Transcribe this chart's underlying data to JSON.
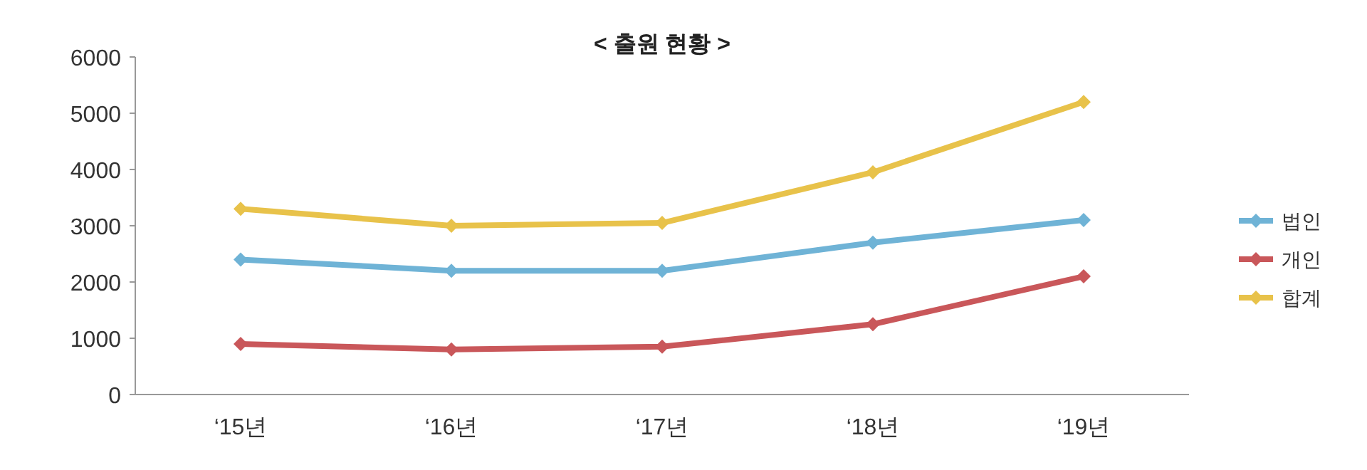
{
  "chart_data": {
    "type": "line",
    "title": "< 출원 현황 >",
    "categories": [
      "‘15년",
      "‘16년",
      "‘17년",
      "‘18년",
      "‘19년"
    ],
    "series": [
      {
        "name": "법인",
        "color": "#6fb3d6",
        "values": [
          2400,
          2200,
          2200,
          2700,
          3100
        ]
      },
      {
        "name": "개인",
        "color": "#c9575a",
        "values": [
          900,
          800,
          850,
          1250,
          2100
        ]
      },
      {
        "name": "합계",
        "color": "#e8c24a",
        "values": [
          3300,
          3000,
          3050,
          3950,
          5200
        ]
      }
    ],
    "ylim": [
      0,
      6000
    ],
    "yticks": [
      0,
      1000,
      2000,
      3000,
      4000,
      5000,
      6000
    ],
    "grid": false,
    "legend": "right",
    "marker": "diamond",
    "line_style": "solid"
  }
}
